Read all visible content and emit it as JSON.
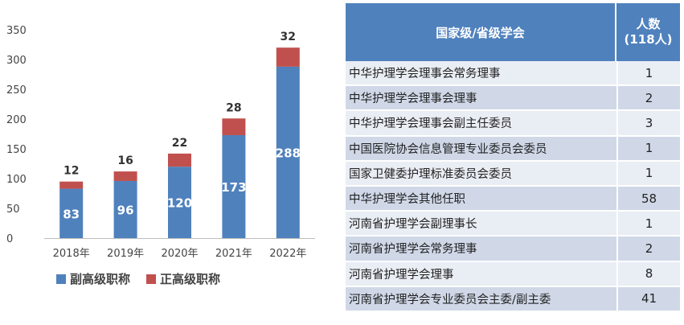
{
  "chart_data": {
    "type": "bar",
    "stacked": true,
    "categories": [
      "2018年",
      "2019年",
      "2020年",
      "2021年",
      "2022年"
    ],
    "series": [
      {
        "name": "副高级职称",
        "color": "#4f81bd",
        "values": [
          83,
          96,
          120,
          173,
          288
        ]
      },
      {
        "name": "正高级职称",
        "color": "#c0504d",
        "values": [
          12,
          16,
          22,
          28,
          32
        ]
      }
    ],
    "yticks": [
      0,
      50,
      100,
      150,
      200,
      250,
      300,
      350
    ],
    "ylim": [
      0,
      350
    ],
    "grid": false,
    "legend": "bottom"
  },
  "table": {
    "headers": [
      "国家级/省级学会",
      "人数",
      "(118人)"
    ],
    "header_color": "#4f81bd",
    "rows": [
      {
        "name": "中华护理学会理事会常务理事",
        "count": "1"
      },
      {
        "name": "中华护理学会理事会理事",
        "count": "2"
      },
      {
        "name": "中华护理学会理事会副主任委员",
        "count": "3"
      },
      {
        "name": "中国医院协会信息管理专业委员会委员",
        "count": "1"
      },
      {
        "name": "国家卫健委护理标准委员会委员",
        "count": "1"
      },
      {
        "name": "中华护理学会其他任职",
        "count": "58"
      },
      {
        "name": "河南省护理学会副理事长",
        "count": "1"
      },
      {
        "name": "河南省护理学会常务理事",
        "count": "2"
      },
      {
        "name": "河南省护理学会理事",
        "count": "8"
      },
      {
        "name": "河南省护理学会专业委员会主委/副主委",
        "count": "41"
      }
    ]
  }
}
